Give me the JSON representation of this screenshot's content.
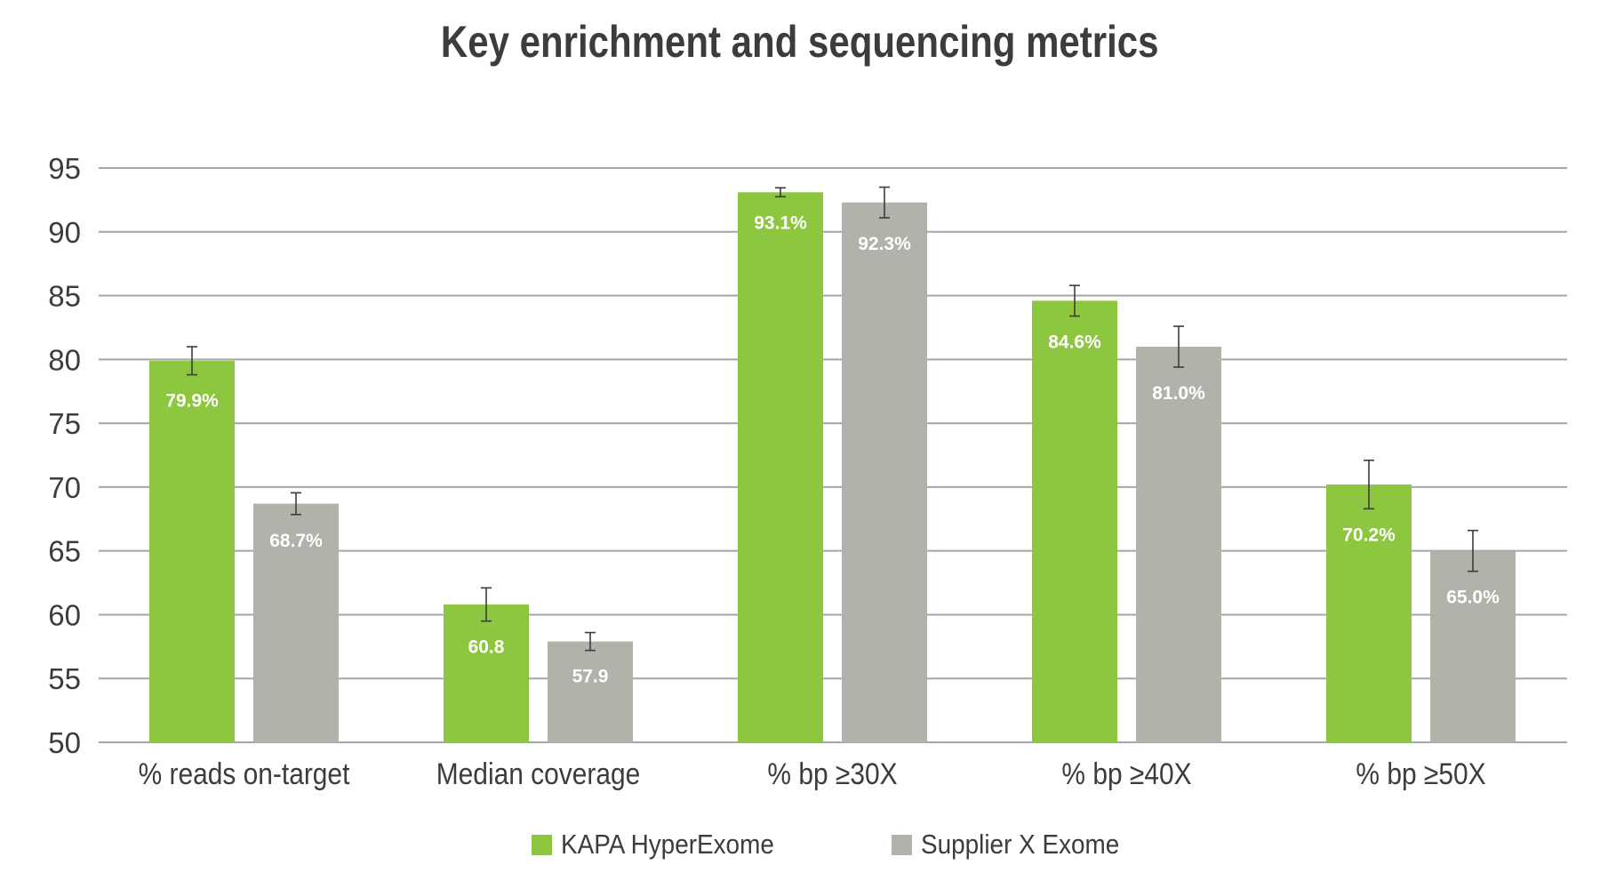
{
  "chart_data": {
    "type": "bar",
    "title": "Key enrichment and sequencing metrics",
    "xlabel": "",
    "ylabel": "",
    "ylim": [
      50,
      95
    ],
    "yticks": [
      50,
      55,
      60,
      65,
      70,
      75,
      80,
      85,
      90,
      95
    ],
    "grid": true,
    "legend_position": "bottom",
    "categories": [
      "% reads on-target",
      "Median coverage",
      "% bp ≥30X",
      "% bp ≥40X",
      "% bp ≥50X"
    ],
    "series": [
      {
        "name": "KAPA HyperExome",
        "color": "#8dc63f",
        "values": [
          79.9,
          60.8,
          93.1,
          84.6,
          70.2
        ],
        "errors": [
          1.1,
          1.3,
          0.35,
          1.2,
          1.9
        ],
        "labels": [
          "79.9%",
          "60.8",
          "93.1%",
          "84.6%",
          "70.2%"
        ]
      },
      {
        "name": "Supplier X Exome",
        "color": "#b2b2aa",
        "values": [
          68.7,
          57.9,
          92.3,
          81.0,
          65.0
        ],
        "errors": [
          0.85,
          0.7,
          1.2,
          1.6,
          1.6
        ],
        "labels": [
          "68.7%",
          "57.9",
          "92.3%",
          "81.0%",
          "65.0%"
        ]
      }
    ]
  }
}
